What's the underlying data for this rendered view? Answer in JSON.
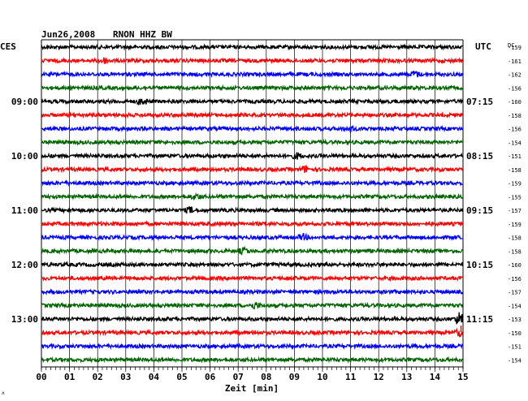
{
  "header": {
    "date": "Jun26,2008",
    "station": "RNON HHZ BW",
    "left_zone": "CES",
    "right_zone": "UTC",
    "dc_label": "DC"
  },
  "colors": {
    "trace_cycle": [
      "#000000",
      "#ff0000",
      "#0000ff",
      "#006400"
    ],
    "grid": "#000000",
    "background": "#ffffff",
    "event_marker": "#ff0000"
  },
  "chart_data": {
    "type": "line",
    "title": "Jun26,2008   RNON HHZ BW",
    "xlabel": "Zeit [min]",
    "ylabel": "",
    "x_range": [
      0,
      15
    ],
    "x_ticks": [
      "00",
      "01",
      "02",
      "03",
      "04",
      "05",
      "06",
      "07",
      "08",
      "09",
      "10",
      "11",
      "12",
      "13",
      "14",
      "15"
    ],
    "rows_per_hour": 4,
    "left_time_labels": [
      {
        "row": 4,
        "label": "09:00"
      },
      {
        "row": 8,
        "label": "10:00"
      },
      {
        "row": 12,
        "label": "11:00"
      },
      {
        "row": 16,
        "label": "12:00"
      },
      {
        "row": 20,
        "label": "13:00"
      }
    ],
    "right_time_labels": [
      {
        "row": 4,
        "label": "07:15"
      },
      {
        "row": 8,
        "label": "08:15"
      },
      {
        "row": 12,
        "label": "09:15"
      },
      {
        "row": 16,
        "label": "10:15"
      },
      {
        "row": 20,
        "label": "11:15"
      }
    ],
    "dc_offsets": [
      -159,
      -161,
      -162,
      -156,
      -160,
      -158,
      -156,
      -154,
      -151,
      -158,
      -159,
      -155,
      -157,
      -159,
      -158,
      -158,
      -160,
      -156,
      -157,
      -154,
      -153,
      -150,
      -151,
      -154
    ],
    "events": [
      {
        "row": 4,
        "minute": 3.6,
        "amplitude": 1.6
      },
      {
        "row": 1,
        "minute": 2.2,
        "amplitude": 1.3
      },
      {
        "row": 2,
        "minute": 13.3,
        "amplitude": 1.4
      },
      {
        "row": 6,
        "minute": 11.0,
        "amplitude": 1.2
      },
      {
        "row": 8,
        "minute": 9.1,
        "amplitude": 1.3
      },
      {
        "row": 9,
        "minute": 9.4,
        "amplitude": 1.4
      },
      {
        "row": 11,
        "minute": 5.5,
        "amplitude": 1.3
      },
      {
        "row": 12,
        "minute": 5.3,
        "amplitude": 1.3
      },
      {
        "row": 14,
        "minute": 9.3,
        "amplitude": 1.3
      },
      {
        "row": 15,
        "minute": 7.2,
        "amplitude": 1.4
      },
      {
        "row": 19,
        "minute": 7.6,
        "amplitude": 1.5
      },
      {
        "row": 20,
        "minute": 14.9,
        "amplitude": 4.0
      },
      {
        "row": 21,
        "minute": 14.9,
        "amplitude": 1.8
      }
    ],
    "grid": true
  }
}
